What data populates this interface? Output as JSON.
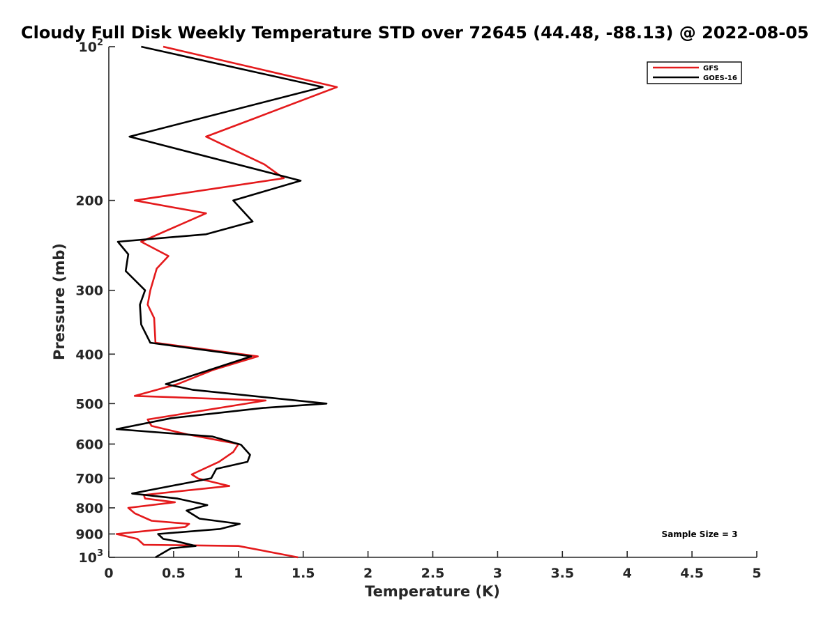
{
  "chart_data": {
    "type": "line",
    "title": "Cloudy Full Disk Weekly Temperature STD over 72645 (44.48, -88.13) @ 2022-08-05",
    "xlabel": "Temperature (K)",
    "ylabel": "Pressure (mb)",
    "xlim": [
      0,
      5
    ],
    "ylim": [
      100,
      1000
    ],
    "y_scale": "log",
    "y_reversed": true,
    "x_ticks": [
      "0",
      "0.5",
      "1",
      "1.5",
      "2",
      "2.5",
      "3",
      "3.5",
      "4",
      "4.5",
      "5"
    ],
    "y_ticks": [
      {
        "value": 100,
        "base": "10",
        "exp": "2"
      },
      {
        "value": 200,
        "label": "200"
      },
      {
        "value": 300,
        "label": "300"
      },
      {
        "value": 400,
        "label": "400"
      },
      {
        "value": 500,
        "label": "500"
      },
      {
        "value": 600,
        "label": "600"
      },
      {
        "value": 700,
        "label": "700"
      },
      {
        "value": 800,
        "label": "800"
      },
      {
        "value": 900,
        "label": "900"
      },
      {
        "value": 1000,
        "base": "10",
        "exp": "3"
      }
    ],
    "grid": false,
    "legend_position": "top-right",
    "annotation": "Sample Size = 3",
    "series": [
      {
        "name": "GFS",
        "color": "#e41a1c",
        "points": [
          [
            0.42,
            100
          ],
          [
            1.76,
            120
          ],
          [
            1.13,
            138
          ],
          [
            0.75,
            150
          ],
          [
            1.2,
            170
          ],
          [
            1.35,
            181
          ],
          [
            0.2,
            200
          ],
          [
            0.75,
            212
          ],
          [
            0.25,
            241
          ],
          [
            0.46,
            257
          ],
          [
            0.37,
            272
          ],
          [
            0.32,
            300
          ],
          [
            0.3,
            320
          ],
          [
            0.35,
            340
          ],
          [
            0.36,
            380
          ],
          [
            1.15,
            404
          ],
          [
            0.8,
            430
          ],
          [
            0.53,
            458
          ],
          [
            0.2,
            483
          ],
          [
            1.21,
            493
          ],
          [
            0.3,
            537
          ],
          [
            0.33,
            553
          ],
          [
            0.6,
            574
          ],
          [
            1.0,
            600
          ],
          [
            0.96,
            622
          ],
          [
            0.85,
            650
          ],
          [
            0.64,
            688
          ],
          [
            0.69,
            701
          ],
          [
            0.93,
            725
          ],
          [
            0.27,
            755
          ],
          [
            0.28,
            767
          ],
          [
            0.51,
            780
          ],
          [
            0.15,
            800
          ],
          [
            0.2,
            820
          ],
          [
            0.33,
            848
          ],
          [
            0.62,
            860
          ],
          [
            0.59,
            872
          ],
          [
            0.06,
            900
          ],
          [
            0.22,
            920
          ],
          [
            0.27,
            945
          ],
          [
            1.0,
            950
          ],
          [
            1.46,
            1000
          ]
        ]
      },
      {
        "name": "GOES-16",
        "color": "#000000",
        "points": [
          [
            0.25,
            100
          ],
          [
            1.65,
            120
          ],
          [
            0.16,
            150
          ],
          [
            1.48,
            183
          ],
          [
            0.96,
            200
          ],
          [
            1.11,
            220
          ],
          [
            0.75,
            233
          ],
          [
            0.07,
            241
          ],
          [
            0.15,
            255
          ],
          [
            0.13,
            275
          ],
          [
            0.28,
            300
          ],
          [
            0.24,
            320
          ],
          [
            0.25,
            350
          ],
          [
            0.32,
            380
          ],
          [
            1.1,
            404
          ],
          [
            0.44,
            458
          ],
          [
            0.65,
            470
          ],
          [
            1.68,
            500
          ],
          [
            1.19,
            510
          ],
          [
            0.48,
            534
          ],
          [
            0.06,
            561
          ],
          [
            0.8,
            580
          ],
          [
            1.02,
            602
          ],
          [
            1.09,
            630
          ],
          [
            1.07,
            650
          ],
          [
            0.83,
            671
          ],
          [
            0.79,
            700
          ],
          [
            0.18,
            750
          ],
          [
            0.53,
            767
          ],
          [
            0.76,
            790
          ],
          [
            0.6,
            810
          ],
          [
            0.7,
            840
          ],
          [
            1.01,
            860
          ],
          [
            0.86,
            880
          ],
          [
            0.38,
            900
          ],
          [
            0.42,
            920
          ],
          [
            0.52,
            930
          ],
          [
            0.67,
            950
          ],
          [
            0.48,
            960
          ],
          [
            0.36,
            1000
          ]
        ]
      }
    ]
  }
}
